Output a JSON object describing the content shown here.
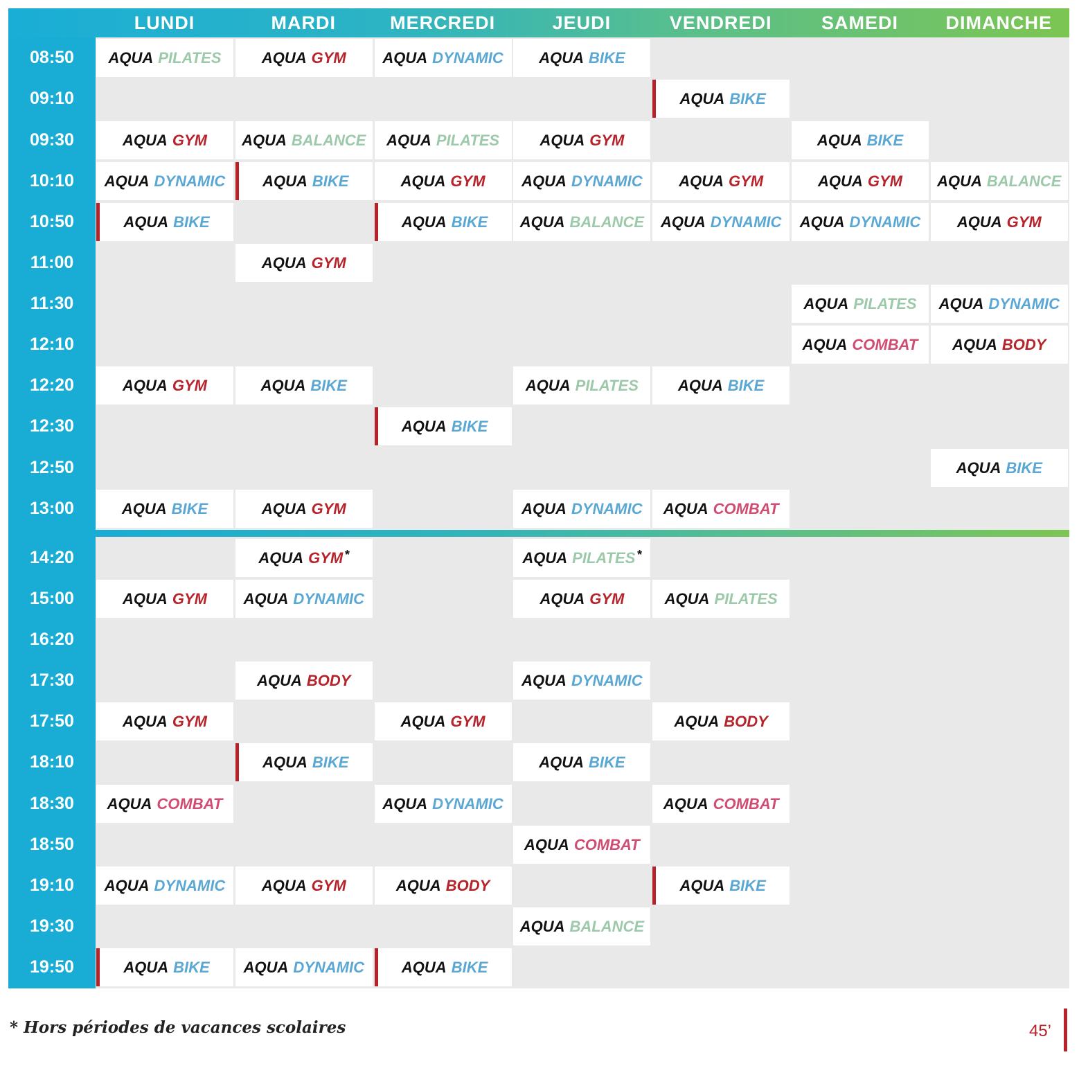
{
  "colors": {
    "GYM": "#b6232b",
    "BIKE": "#5aa7d4",
    "DYNAMIC": "#5aa7d4",
    "PILATES": "#9cc9a9",
    "BALANCE": "#9cc9a9",
    "COMBAT": "#cf4d72",
    "BODY": "#b6232b",
    "marker": "#b6232b",
    "time_column": "#19acd5",
    "grid_background": "#e9e9e9"
  },
  "days": [
    "LUNDI",
    "MARDI",
    "MERCREDI",
    "JEUDI",
    "VENDREDI",
    "SAMEDI",
    "DIMANCHE"
  ],
  "times": [
    "08:50",
    "09:10",
    "09:30",
    "10:10",
    "10:50",
    "11:00",
    "11:30",
    "12:10",
    "12:20",
    "12:30",
    "12:50",
    "13:00",
    "14:20",
    "15:00",
    "16:20",
    "17:30",
    "17:50",
    "18:10",
    "18:30",
    "18:50",
    "19:10",
    "19:30",
    "19:50"
  ],
  "classes": [
    {
      "time": "08:50",
      "day": "LUNDI",
      "prefix": "AQUA",
      "name": "PILATES"
    },
    {
      "time": "08:50",
      "day": "MARDI",
      "prefix": "AQUA",
      "name": "GYM"
    },
    {
      "time": "08:50",
      "day": "MERCREDI",
      "prefix": "AQUA",
      "name": "DYNAMIC"
    },
    {
      "time": "08:50",
      "day": "JEUDI",
      "prefix": "AQUA",
      "name": "BIKE"
    },
    {
      "time": "09:10",
      "day": "VENDREDI",
      "prefix": "AQUA",
      "name": "BIKE",
      "marked": true
    },
    {
      "time": "09:30",
      "day": "LUNDI",
      "prefix": "AQUA",
      "name": "GYM"
    },
    {
      "time": "09:30",
      "day": "MARDI",
      "prefix": "AQUA",
      "name": "BALANCE"
    },
    {
      "time": "09:30",
      "day": "MERCREDI",
      "prefix": "AQUA",
      "name": "PILATES"
    },
    {
      "time": "09:30",
      "day": "JEUDI",
      "prefix": "AQUA",
      "name": "GYM"
    },
    {
      "time": "09:30",
      "day": "SAMEDI",
      "prefix": "AQUA",
      "name": "BIKE"
    },
    {
      "time": "10:10",
      "day": "LUNDI",
      "prefix": "AQUA",
      "name": "DYNAMIC"
    },
    {
      "time": "10:10",
      "day": "MARDI",
      "prefix": "AQUA",
      "name": "BIKE",
      "marked": true
    },
    {
      "time": "10:10",
      "day": "MERCREDI",
      "prefix": "AQUA",
      "name": "GYM"
    },
    {
      "time": "10:10",
      "day": "JEUDI",
      "prefix": "AQUA",
      "name": "DYNAMIC"
    },
    {
      "time": "10:10",
      "day": "VENDREDI",
      "prefix": "AQUA",
      "name": "GYM"
    },
    {
      "time": "10:10",
      "day": "SAMEDI",
      "prefix": "AQUA",
      "name": "GYM"
    },
    {
      "time": "10:10",
      "day": "DIMANCHE",
      "prefix": "AQUA",
      "name": "BALANCE"
    },
    {
      "time": "10:50",
      "day": "LUNDI",
      "prefix": "AQUA",
      "name": "BIKE",
      "marked": true
    },
    {
      "time": "10:50",
      "day": "MERCREDI",
      "prefix": "AQUA",
      "name": "BIKE",
      "marked": true
    },
    {
      "time": "10:50",
      "day": "JEUDI",
      "prefix": "AQUA",
      "name": "BALANCE"
    },
    {
      "time": "10:50",
      "day": "VENDREDI",
      "prefix": "AQUA",
      "name": "DYNAMIC"
    },
    {
      "time": "10:50",
      "day": "SAMEDI",
      "prefix": "AQUA",
      "name": "DYNAMIC"
    },
    {
      "time": "10:50",
      "day": "DIMANCHE",
      "prefix": "AQUA",
      "name": "GYM"
    },
    {
      "time": "11:00",
      "day": "MARDI",
      "prefix": "AQUA",
      "name": "GYM"
    },
    {
      "time": "11:30",
      "day": "SAMEDI",
      "prefix": "AQUA",
      "name": "PILATES"
    },
    {
      "time": "11:30",
      "day": "DIMANCHE",
      "prefix": "AQUA",
      "name": "DYNAMIC"
    },
    {
      "time": "12:10",
      "day": "SAMEDI",
      "prefix": "AQUA",
      "name": "COMBAT"
    },
    {
      "time": "12:10",
      "day": "DIMANCHE",
      "prefix": "AQUA",
      "name": "BODY"
    },
    {
      "time": "12:20",
      "day": "LUNDI",
      "prefix": "AQUA",
      "name": "GYM"
    },
    {
      "time": "12:20",
      "day": "MARDI",
      "prefix": "AQUA",
      "name": "BIKE"
    },
    {
      "time": "12:20",
      "day": "JEUDI",
      "prefix": "AQUA",
      "name": "PILATES"
    },
    {
      "time": "12:20",
      "day": "VENDREDI",
      "prefix": "AQUA",
      "name": "BIKE"
    },
    {
      "time": "12:30",
      "day": "MERCREDI",
      "prefix": "AQUA",
      "name": "BIKE",
      "marked": true
    },
    {
      "time": "12:50",
      "day": "DIMANCHE",
      "prefix": "AQUA",
      "name": "BIKE"
    },
    {
      "time": "13:00",
      "day": "LUNDI",
      "prefix": "AQUA",
      "name": "BIKE"
    },
    {
      "time": "13:00",
      "day": "MARDI",
      "prefix": "AQUA",
      "name": "GYM"
    },
    {
      "time": "13:00",
      "day": "JEUDI",
      "prefix": "AQUA",
      "name": "DYNAMIC"
    },
    {
      "time": "13:00",
      "day": "VENDREDI",
      "prefix": "AQUA",
      "name": "COMBAT"
    },
    {
      "time": "14:20",
      "day": "MARDI",
      "prefix": "AQUA",
      "name": "GYM",
      "note": "*"
    },
    {
      "time": "14:20",
      "day": "JEUDI",
      "prefix": "AQUA",
      "name": "PILATES",
      "note": "*"
    },
    {
      "time": "15:00",
      "day": "LUNDI",
      "prefix": "AQUA",
      "name": "GYM"
    },
    {
      "time": "15:00",
      "day": "MARDI",
      "prefix": "AQUA",
      "name": "DYNAMIC"
    },
    {
      "time": "15:00",
      "day": "JEUDI",
      "prefix": "AQUA",
      "name": "GYM"
    },
    {
      "time": "15:00",
      "day": "VENDREDI",
      "prefix": "AQUA",
      "name": "PILATES"
    },
    {
      "time": "17:30",
      "day": "MARDI",
      "prefix": "AQUA",
      "name": "BODY"
    },
    {
      "time": "17:30",
      "day": "JEUDI",
      "prefix": "AQUA",
      "name": "DYNAMIC"
    },
    {
      "time": "17:50",
      "day": "LUNDI",
      "prefix": "AQUA",
      "name": "GYM"
    },
    {
      "time": "17:50",
      "day": "MERCREDI",
      "prefix": "AQUA",
      "name": "GYM"
    },
    {
      "time": "17:50",
      "day": "VENDREDI",
      "prefix": "AQUA",
      "name": "BODY"
    },
    {
      "time": "18:10",
      "day": "MARDI",
      "prefix": "AQUA",
      "name": "BIKE",
      "marked": true
    },
    {
      "time": "18:10",
      "day": "JEUDI",
      "prefix": "AQUA",
      "name": "BIKE"
    },
    {
      "time": "18:30",
      "day": "LUNDI",
      "prefix": "AQUA",
      "name": "COMBAT"
    },
    {
      "time": "18:30",
      "day": "MERCREDI",
      "prefix": "AQUA",
      "name": "DYNAMIC"
    },
    {
      "time": "18:30",
      "day": "VENDREDI",
      "prefix": "AQUA",
      "name": "COMBAT"
    },
    {
      "time": "18:50",
      "day": "JEUDI",
      "prefix": "AQUA",
      "name": "COMBAT"
    },
    {
      "time": "19:10",
      "day": "LUNDI",
      "prefix": "AQUA",
      "name": "DYNAMIC"
    },
    {
      "time": "19:10",
      "day": "MARDI",
      "prefix": "AQUA",
      "name": "GYM"
    },
    {
      "time": "19:10",
      "day": "MERCREDI",
      "prefix": "AQUA",
      "name": "BODY"
    },
    {
      "time": "19:10",
      "day": "VENDREDI",
      "prefix": "AQUA",
      "name": "BIKE",
      "marked": true
    },
    {
      "time": "19:30",
      "day": "JEUDI",
      "prefix": "AQUA",
      "name": "BALANCE"
    },
    {
      "time": "19:50",
      "day": "LUNDI",
      "prefix": "AQUA",
      "name": "BIKE",
      "marked": true
    },
    {
      "time": "19:50",
      "day": "MARDI",
      "prefix": "AQUA",
      "name": "DYNAMIC"
    },
    {
      "time": "19:50",
      "day": "MERCREDI",
      "prefix": "AQUA",
      "name": "BIKE",
      "marked": true
    }
  ],
  "footnote": "* Hors périodes de vacances scolaires",
  "duration": "45’"
}
